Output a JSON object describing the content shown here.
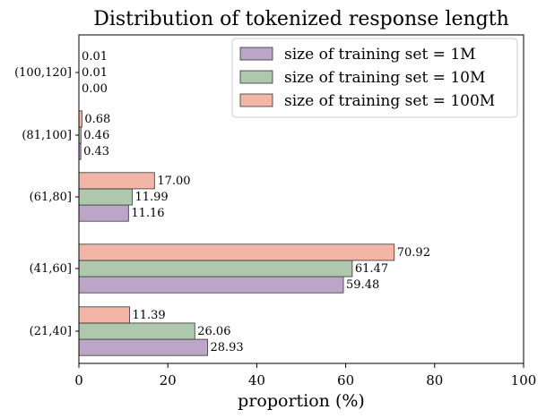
{
  "chart_data": {
    "type": "bar",
    "orientation": "horizontal",
    "title": "Distribution of tokenized response length",
    "xlabel": "proportion (%)",
    "ylabel": "",
    "xlim": [
      0,
      100
    ],
    "x_ticks": [
      "0",
      "20",
      "40",
      "60",
      "80",
      "100"
    ],
    "categories": [
      "(21,40]",
      "(41,60]",
      "(61,80]",
      "(81,100]",
      "(100,120]"
    ],
    "series": [
      {
        "name": "size of training set = 1M",
        "color": "#bca6c8",
        "values": [
          28.93,
          59.48,
          11.16,
          0.43,
          0.0
        ],
        "labels": [
          "28.93",
          "59.48",
          "11.16",
          "0.43",
          "0.00"
        ]
      },
      {
        "name": "size of training set = 10M",
        "color": "#adc8ad",
        "values": [
          26.06,
          61.47,
          11.99,
          0.46,
          0.01
        ],
        "labels": [
          "26.06",
          "61.47",
          "11.99",
          "0.46",
          "0.01"
        ]
      },
      {
        "name": "size of training set = 100M",
        "color": "#f3b5a5",
        "values": [
          11.39,
          70.92,
          17.0,
          0.68,
          0.01
        ],
        "labels": [
          "11.39",
          "70.92",
          "17.00",
          "0.68",
          "0.01"
        ]
      }
    ],
    "legend": "top-right",
    "grid": false
  }
}
